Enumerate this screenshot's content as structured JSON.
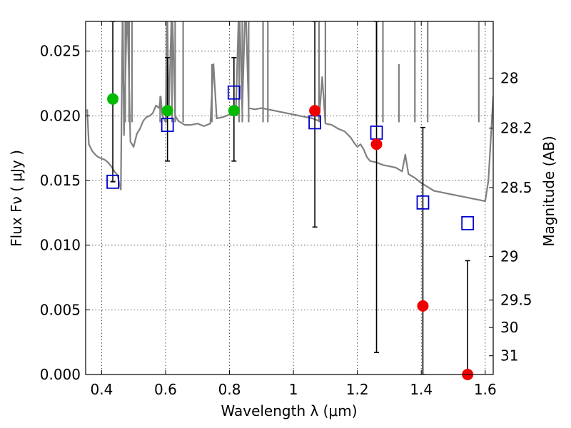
{
  "chart_data": {
    "type": "scatter",
    "xlabel": "Wavelength  λ (μm)",
    "ylabel": "Flux  Fν  ( μJy )",
    "y2label": "Magnitude (AB)",
    "xlim": [
      0.35,
      1.625
    ],
    "ylim": [
      0,
      0.0273
    ],
    "grid": true,
    "x_ticks": [
      0.4,
      0.6,
      0.8,
      1.0,
      1.2,
      1.4,
      1.6
    ],
    "x_tick_labels": [
      "0.4",
      "0.6",
      "0.8",
      "1",
      "1.2",
      "1.4",
      "1.6"
    ],
    "y_ticks": [
      0,
      0.005,
      0.01,
      0.015,
      0.02,
      0.025
    ],
    "y_tick_labels": [
      "0.000",
      "0.005",
      "0.010",
      "0.015",
      "0.020",
      "0.025"
    ],
    "magnitude_ticks": [
      {
        "label": "28",
        "flux": 0.02291
      },
      {
        "label": "28.2",
        "flux": 0.01905
      },
      {
        "label": "28.5",
        "flux": 0.01445
      },
      {
        "label": "29",
        "flux": 0.00912
      },
      {
        "label": "29.5",
        "flux": 0.00575
      },
      {
        "label": "30",
        "flux": 0.00363
      },
      {
        "label": "31",
        "flux": 0.00145
      }
    ],
    "colors": {
      "spectrum": "#808080",
      "detections": "#00bb00",
      "measured": "#ee0000",
      "model_photometry": "#0000cc",
      "error_bars": "#000000"
    },
    "spectrum": [
      [
        0.355,
        0.0205
      ],
      [
        0.36,
        0.0178
      ],
      [
        0.37,
        0.0173
      ],
      [
        0.38,
        0.017
      ],
      [
        0.39,
        0.0168
      ],
      [
        0.4,
        0.0167
      ],
      [
        0.41,
        0.0166
      ],
      [
        0.42,
        0.0164
      ],
      [
        0.43,
        0.0161
      ],
      [
        0.44,
        0.0157
      ],
      [
        0.45,
        0.0154
      ],
      [
        0.455,
        0.0148
      ],
      [
        0.46,
        0.0143
      ],
      [
        0.466,
        0.029
      ],
      [
        0.47,
        0.0185
      ],
      [
        0.48,
        0.029
      ],
      [
        0.49,
        0.018
      ],
      [
        0.5,
        0.0176
      ],
      [
        0.51,
        0.0186
      ],
      [
        0.52,
        0.019
      ],
      [
        0.53,
        0.0196
      ],
      [
        0.54,
        0.0199
      ],
      [
        0.55,
        0.02
      ],
      [
        0.56,
        0.0202
      ],
      [
        0.57,
        0.0208
      ],
      [
        0.58,
        0.0206
      ],
      [
        0.585,
        0.0215
      ],
      [
        0.59,
        0.02
      ],
      [
        0.6,
        0.0195
      ],
      [
        0.605,
        0.029
      ],
      [
        0.61,
        0.02
      ],
      [
        0.62,
        0.029
      ],
      [
        0.63,
        0.02
      ],
      [
        0.64,
        0.0196
      ],
      [
        0.66,
        0.0193
      ],
      [
        0.68,
        0.0193
      ],
      [
        0.7,
        0.0194
      ],
      [
        0.72,
        0.0192
      ],
      [
        0.74,
        0.0194
      ],
      [
        0.75,
        0.024
      ],
      [
        0.76,
        0.0198
      ],
      [
        0.78,
        0.0199
      ],
      [
        0.8,
        0.0201
      ],
      [
        0.81,
        0.0204
      ],
      [
        0.82,
        0.0205
      ],
      [
        0.83,
        0.029
      ],
      [
        0.84,
        0.0205
      ],
      [
        0.85,
        0.029
      ],
      [
        0.86,
        0.0206
      ],
      [
        0.88,
        0.0205
      ],
      [
        0.9,
        0.0206
      ],
      [
        0.92,
        0.0205
      ],
      [
        0.94,
        0.0204
      ],
      [
        0.96,
        0.0203
      ],
      [
        0.98,
        0.0202
      ],
      [
        1.0,
        0.0201
      ],
      [
        1.02,
        0.02
      ],
      [
        1.04,
        0.0199
      ],
      [
        1.06,
        0.0198
      ],
      [
        1.08,
        0.0196
      ],
      [
        1.09,
        0.023
      ],
      [
        1.1,
        0.0194
      ],
      [
        1.12,
        0.0193
      ],
      [
        1.14,
        0.019
      ],
      [
        1.16,
        0.0188
      ],
      [
        1.18,
        0.0183
      ],
      [
        1.19,
        0.0179
      ],
      [
        1.2,
        0.0176
      ],
      [
        1.21,
        0.0178
      ],
      [
        1.22,
        0.0174
      ],
      [
        1.23,
        0.0168
      ],
      [
        1.24,
        0.0165
      ],
      [
        1.26,
        0.0164
      ],
      [
        1.28,
        0.0162
      ],
      [
        1.3,
        0.0161
      ],
      [
        1.32,
        0.016
      ],
      [
        1.34,
        0.0157
      ],
      [
        1.35,
        0.017
      ],
      [
        1.36,
        0.0155
      ],
      [
        1.38,
        0.0152
      ],
      [
        1.4,
        0.0148
      ],
      [
        1.42,
        0.0145
      ],
      [
        1.44,
        0.0142
      ],
      [
        1.46,
        0.0141
      ],
      [
        1.48,
        0.014
      ],
      [
        1.5,
        0.0139
      ],
      [
        1.52,
        0.0138
      ],
      [
        1.54,
        0.0137
      ],
      [
        1.56,
        0.0136
      ],
      [
        1.58,
        0.0135
      ],
      [
        1.6,
        0.0134
      ],
      [
        1.61,
        0.015
      ],
      [
        1.625,
        0.0215
      ]
    ],
    "spectrum_spikes": [
      [
        0.474,
        0.029
      ],
      [
        0.486,
        0.029
      ],
      [
        0.495,
        0.029
      ],
      [
        0.583,
        0.0215
      ],
      [
        0.605,
        0.029
      ],
      [
        0.62,
        0.029
      ],
      [
        0.63,
        0.029
      ],
      [
        0.655,
        0.029
      ],
      [
        0.745,
        0.024
      ],
      [
        0.83,
        0.029
      ],
      [
        0.84,
        0.029
      ],
      [
        0.86,
        0.029
      ],
      [
        0.905,
        0.029
      ],
      [
        0.92,
        0.029
      ],
      [
        1.08,
        0.029
      ],
      [
        1.1,
        0.029
      ],
      [
        1.26,
        0.029
      ],
      [
        1.28,
        0.029
      ],
      [
        1.33,
        0.024
      ],
      [
        1.38,
        0.029
      ],
      [
        1.42,
        0.029
      ],
      [
        1.58,
        0.029
      ]
    ],
    "detections": [
      {
        "x": 0.435,
        "y": 0.0213
      },
      {
        "x": 0.606,
        "y": 0.0204
      },
      {
        "x": 0.814,
        "y": 0.0204
      }
    ],
    "measured": [
      {
        "x": 1.067,
        "y": 0.0204
      },
      {
        "x": 1.26,
        "y": 0.0178
      },
      {
        "x": 1.405,
        "y": 0.0053
      },
      {
        "x": 1.545,
        "y": 0.0
      }
    ],
    "model_photometry": [
      {
        "x": 0.435,
        "y": 0.0149
      },
      {
        "x": 0.606,
        "y": 0.0193
      },
      {
        "x": 0.814,
        "y": 0.0218
      },
      {
        "x": 1.067,
        "y": 0.0195
      },
      {
        "x": 1.26,
        "y": 0.0187
      },
      {
        "x": 1.405,
        "y": 0.0133
      },
      {
        "x": 1.545,
        "y": 0.0117
      }
    ],
    "error_bars": [
      {
        "x": 0.435,
        "low": 0.0149,
        "high": 0.0273
      },
      {
        "x": 0.606,
        "low": 0.0165,
        "high": 0.0245
      },
      {
        "x": 0.814,
        "low": 0.0165,
        "high": 0.0245
      },
      {
        "x": 1.067,
        "low": 0.0114,
        "high": 0.0273
      },
      {
        "x": 1.26,
        "low": 0.0017,
        "high": 0.0273
      },
      {
        "x": 1.405,
        "low": 0.0,
        "high": 0.0191
      },
      {
        "x": 1.545,
        "low": 0.0,
        "high": 0.0088
      }
    ]
  }
}
